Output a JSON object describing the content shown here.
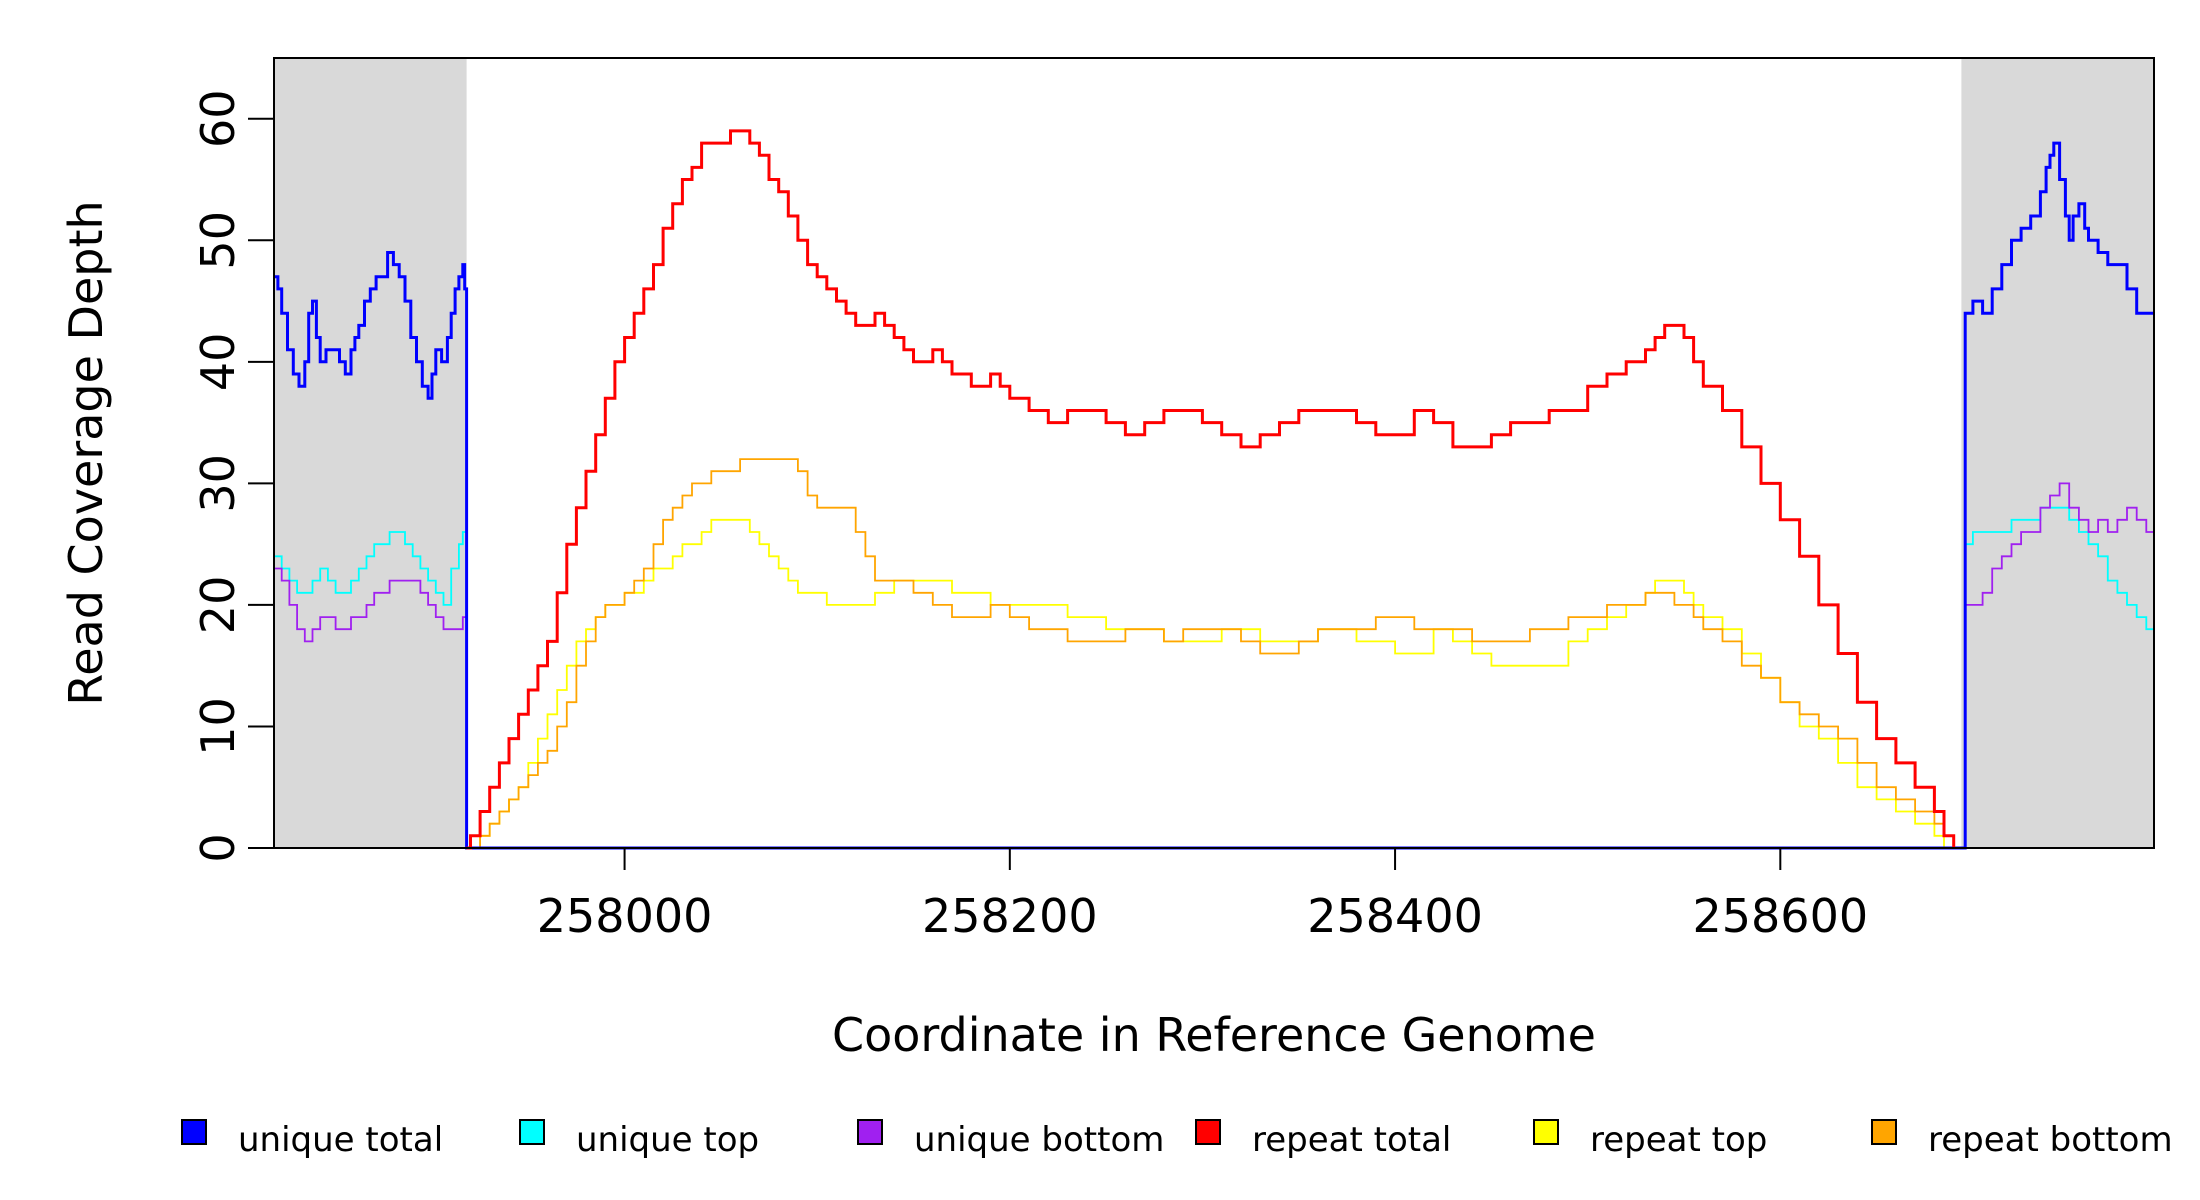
{
  "chart_data": {
    "type": "line",
    "title": "",
    "xlabel": "Coordinate in Reference Genome",
    "ylabel": "Read Coverage Depth",
    "xlim": [
      257818,
      258794
    ],
    "ylim": [
      0,
      65
    ],
    "x_ticks": [
      258000,
      258200,
      258400,
      258600
    ],
    "y_ticks": [
      0,
      10,
      20,
      30,
      40,
      50,
      60
    ],
    "x_tick_labels": [
      "258000",
      "258200",
      "258400",
      "258600"
    ],
    "y_tick_labels": [
      "0",
      "10",
      "20",
      "30",
      "40",
      "50",
      "60"
    ],
    "grid": false,
    "legend_position": "bottom",
    "shaded_regions": [
      {
        "x_start": 257818,
        "x_end": 257918,
        "color": "#d9d9d9"
      },
      {
        "x_start": 258694,
        "x_end": 258794,
        "color": "#d9d9d9"
      }
    ],
    "series": [
      {
        "name": "unique total",
        "color": "#0000ff",
        "x": [
          257818,
          257820,
          257822,
          257825,
          257828,
          257831,
          257834,
          257836,
          257838,
          257840,
          257842,
          257845,
          257848,
          257852,
          257855,
          257858,
          257860,
          257862,
          257865,
          257868,
          257871,
          257874,
          257877,
          257880,
          257883,
          257886,
          257889,
          257892,
          257895,
          257898,
          257900,
          257902,
          257905,
          257908,
          257910,
          257912,
          257914,
          257916,
          257917,
          257918,
          257920,
          258694,
          258696,
          258700,
          258705,
          258710,
          258715,
          258720,
          258725,
          258730,
          258735,
          258738,
          258740,
          258742,
          258745,
          258748,
          258750,
          258752,
          258755,
          258758,
          258760,
          258765,
          258770,
          258775,
          258780,
          258785,
          258790,
          258794
        ],
        "y": [
          47,
          46,
          44,
          41,
          39,
          38,
          40,
          44,
          45,
          42,
          40,
          41,
          41,
          40,
          39,
          41,
          42,
          43,
          45,
          46,
          47,
          47,
          49,
          48,
          47,
          45,
          42,
          40,
          38,
          37,
          39,
          41,
          40,
          42,
          44,
          46,
          47,
          48,
          46,
          0,
          0,
          0,
          44,
          45,
          44,
          46,
          48,
          50,
          51,
          52,
          54,
          56,
          57,
          58,
          55,
          52,
          50,
          52,
          53,
          51,
          50,
          49,
          48,
          48,
          46,
          44,
          44,
          44
        ]
      },
      {
        "name": "unique top",
        "color": "#00ffff",
        "x": [
          257818,
          257822,
          257826,
          257830,
          257834,
          257838,
          257842,
          257846,
          257850,
          257854,
          257858,
          257862,
          257866,
          257870,
          257874,
          257878,
          257882,
          257886,
          257890,
          257894,
          257898,
          257902,
          257906,
          257910,
          257914,
          257916,
          257918,
          257920,
          258694,
          258696,
          258700,
          258705,
          258710,
          258715,
          258720,
          258725,
          258730,
          258735,
          258740,
          258745,
          258750,
          258755,
          258760,
          258765,
          258770,
          258775,
          258780,
          258785,
          258790,
          258794
        ],
        "y": [
          24,
          23,
          22,
          21,
          21,
          22,
          23,
          22,
          21,
          21,
          22,
          23,
          24,
          25,
          25,
          26,
          26,
          25,
          24,
          23,
          22,
          21,
          20,
          23,
          25,
          26,
          0,
          0,
          0,
          25,
          26,
          26,
          26,
          26,
          27,
          27,
          27,
          28,
          28,
          28,
          27,
          26,
          25,
          24,
          22,
          21,
          20,
          19,
          18,
          18
        ]
      },
      {
        "name": "unique bottom",
        "color": "#a020f0",
        "x": [
          257818,
          257822,
          257826,
          257830,
          257834,
          257838,
          257842,
          257846,
          257850,
          257854,
          257858,
          257862,
          257866,
          257870,
          257874,
          257878,
          257882,
          257886,
          257890,
          257894,
          257898,
          257902,
          257906,
          257910,
          257914,
          257916,
          257918,
          257920,
          258694,
          258696,
          258700,
          258705,
          258710,
          258715,
          258720,
          258725,
          258730,
          258735,
          258740,
          258745,
          258750,
          258755,
          258760,
          258765,
          258770,
          258775,
          258780,
          258785,
          258790,
          258794
        ],
        "y": [
          23,
          22,
          20,
          18,
          17,
          18,
          19,
          19,
          18,
          18,
          19,
          19,
          20,
          21,
          21,
          22,
          22,
          22,
          22,
          21,
          20,
          19,
          18,
          18,
          18,
          19,
          0,
          0,
          0,
          20,
          20,
          21,
          23,
          24,
          25,
          26,
          26,
          28,
          29,
          30,
          28,
          27,
          26,
          27,
          26,
          27,
          28,
          27,
          26,
          26
        ]
      },
      {
        "name": "repeat total",
        "color": "#ff0000",
        "x": [
          257918,
          257920,
          257925,
          257930,
          257935,
          257940,
          257945,
          257950,
          257955,
          257960,
          257965,
          257970,
          257975,
          257980,
          257985,
          257990,
          257995,
          258000,
          258005,
          258010,
          258015,
          258020,
          258025,
          258030,
          258035,
          258040,
          258045,
          258050,
          258055,
          258060,
          258065,
          258070,
          258075,
          258080,
          258085,
          258090,
          258095,
          258100,
          258105,
          258110,
          258115,
          258120,
          258125,
          258130,
          258135,
          258140,
          258145,
          258150,
          258155,
          258160,
          258165,
          258170,
          258175,
          258180,
          258185,
          258190,
          258195,
          258200,
          258205,
          258210,
          258220,
          258230,
          258240,
          258250,
          258260,
          258270,
          258280,
          258290,
          258300,
          258310,
          258320,
          258330,
          258340,
          258350,
          258360,
          258370,
          258380,
          258390,
          258400,
          258410,
          258420,
          258430,
          258440,
          258450,
          258460,
          258470,
          258480,
          258490,
          258500,
          258510,
          258520,
          258530,
          258535,
          258540,
          258545,
          258550,
          258555,
          258560,
          258570,
          258580,
          258590,
          258600,
          258610,
          258620,
          258630,
          258640,
          258650,
          258660,
          258670,
          258680,
          258685,
          258690
        ],
        "y": [
          0,
          1,
          3,
          5,
          7,
          9,
          11,
          13,
          15,
          17,
          21,
          25,
          28,
          31,
          34,
          37,
          40,
          42,
          44,
          46,
          48,
          51,
          53,
          55,
          56,
          58,
          58,
          58,
          59,
          59,
          58,
          57,
          55,
          54,
          52,
          50,
          48,
          47,
          46,
          45,
          44,
          43,
          43,
          44,
          43,
          42,
          41,
          40,
          40,
          41,
          40,
          39,
          39,
          38,
          38,
          39,
          38,
          37,
          37,
          36,
          35,
          36,
          36,
          35,
          34,
          35,
          36,
          36,
          35,
          34,
          33,
          34,
          35,
          36,
          36,
          36,
          35,
          34,
          34,
          36,
          35,
          33,
          33,
          34,
          35,
          35,
          36,
          36,
          38,
          39,
          40,
          41,
          42,
          43,
          43,
          42,
          40,
          38,
          36,
          33,
          30,
          27,
          24,
          20,
          16,
          12,
          9,
          7,
          5,
          3,
          1,
          0
        ]
      },
      {
        "name": "repeat top",
        "color": "#ffff00",
        "x": [
          257918,
          257920,
          257925,
          257930,
          257935,
          257940,
          257945,
          257950,
          257955,
          257960,
          257965,
          257970,
          257975,
          257980,
          257985,
          257990,
          257995,
          258000,
          258005,
          258010,
          258015,
          258020,
          258025,
          258030,
          258035,
          258040,
          258045,
          258050,
          258055,
          258060,
          258065,
          258070,
          258075,
          258080,
          258085,
          258090,
          258095,
          258100,
          258105,
          258110,
          258120,
          258130,
          258140,
          258150,
          258160,
          258170,
          258180,
          258190,
          258200,
          258210,
          258220,
          258230,
          258240,
          258250,
          258260,
          258270,
          258280,
          258290,
          258300,
          258310,
          258320,
          258330,
          258340,
          258350,
          258360,
          258370,
          258380,
          258390,
          258400,
          258410,
          258420,
          258430,
          258440,
          258450,
          258460,
          258470,
          258480,
          258490,
          258500,
          258510,
          258520,
          258530,
          258535,
          258540,
          258545,
          258550,
          258555,
          258560,
          258570,
          258580,
          258590,
          258600,
          258610,
          258620,
          258630,
          258640,
          258650,
          258660,
          258670,
          258680,
          258685,
          258690
        ],
        "y": [
          0,
          0,
          1,
          2,
          3,
          4,
          5,
          7,
          9,
          11,
          13,
          15,
          17,
          18,
          19,
          20,
          20,
          21,
          21,
          22,
          23,
          23,
          24,
          25,
          25,
          26,
          27,
          27,
          27,
          27,
          26,
          25,
          24,
          23,
          22,
          21,
          21,
          21,
          20,
          20,
          20,
          21,
          22,
          22,
          22,
          21,
          21,
          20,
          20,
          20,
          20,
          19,
          19,
          18,
          18,
          18,
          17,
          17,
          17,
          18,
          18,
          17,
          17,
          17,
          18,
          18,
          17,
          17,
          16,
          16,
          18,
          17,
          16,
          15,
          15,
          15,
          15,
          17,
          18,
          19,
          20,
          21,
          22,
          22,
          22,
          21,
          20,
          19,
          18,
          16,
          14,
          12,
          10,
          9,
          7,
          5,
          4,
          3,
          2,
          1,
          0,
          0
        ]
      },
      {
        "name": "repeat bottom",
        "color": "#ffa500",
        "x": [
          257918,
          257920,
          257925,
          257930,
          257935,
          257940,
          257945,
          257950,
          257955,
          257960,
          257965,
          257970,
          257975,
          257980,
          257985,
          257990,
          257995,
          258000,
          258005,
          258010,
          258015,
          258020,
          258025,
          258030,
          258035,
          258040,
          258045,
          258050,
          258055,
          258060,
          258065,
          258070,
          258075,
          258080,
          258085,
          258090,
          258095,
          258100,
          258105,
          258110,
          258115,
          258120,
          258125,
          258130,
          258140,
          258150,
          258160,
          258170,
          258180,
          258190,
          258200,
          258210,
          258220,
          258230,
          258240,
          258250,
          258260,
          258270,
          258280,
          258290,
          258300,
          258310,
          258320,
          258330,
          258340,
          258350,
          258360,
          258370,
          258380,
          258390,
          258400,
          258410,
          258420,
          258430,
          258440,
          258450,
          258460,
          258470,
          258480,
          258490,
          258500,
          258510,
          258520,
          258530,
          258535,
          258540,
          258545,
          258550,
          258555,
          258560,
          258570,
          258580,
          258590,
          258600,
          258610,
          258620,
          258630,
          258640,
          258650,
          258660,
          258670,
          258680,
          258685,
          258690
        ],
        "y": [
          0,
          0,
          1,
          2,
          3,
          4,
          5,
          6,
          7,
          8,
          10,
          12,
          15,
          17,
          19,
          20,
          20,
          21,
          22,
          23,
          25,
          27,
          28,
          29,
          30,
          30,
          31,
          31,
          31,
          32,
          32,
          32,
          32,
          32,
          32,
          31,
          29,
          28,
          28,
          28,
          28,
          26,
          24,
          22,
          22,
          21,
          20,
          19,
          19,
          20,
          19,
          18,
          18,
          17,
          17,
          17,
          18,
          18,
          17,
          18,
          18,
          18,
          17,
          16,
          16,
          17,
          18,
          18,
          18,
          19,
          19,
          18,
          18,
          18,
          17,
          17,
          17,
          18,
          18,
          19,
          19,
          20,
          20,
          21,
          21,
          21,
          20,
          20,
          19,
          18,
          17,
          15,
          14,
          12,
          11,
          10,
          9,
          7,
          5,
          4,
          3,
          2,
          1,
          0
        ]
      }
    ]
  }
}
